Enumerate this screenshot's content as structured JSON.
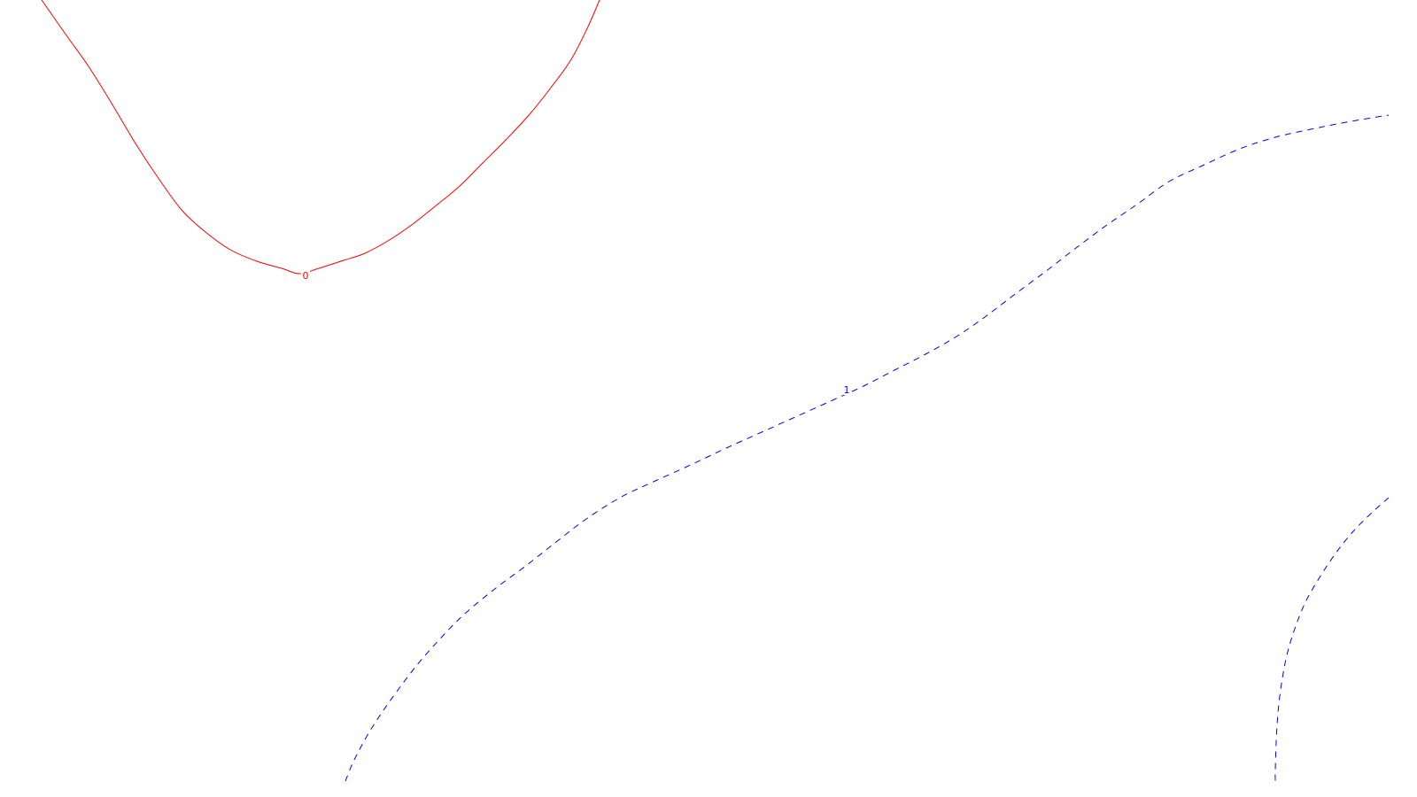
{
  "chart_data": {
    "type": "contour",
    "title": "",
    "xlabel": "",
    "ylabel": "",
    "grid": false,
    "legend": "none",
    "levels": [
      {
        "name": "level-0",
        "label": "0",
        "color": "#ff0000",
        "style": "solid",
        "segments": [
          {
            "id": "zero-contour",
            "points": [
              [
                47,
                0
              ],
              [
                75,
                40
              ],
              [
                100,
                75
              ],
              [
                125,
                115
              ],
              [
                153,
                162
              ],
              [
                178,
                200
              ],
              [
                205,
                237
              ],
              [
                232,
                262
              ],
              [
                260,
                282
              ],
              [
                290,
                295
              ],
              [
                318,
                303
              ],
              [
                338,
                309
              ],
              [
                360,
                303
              ],
              [
                388,
                294
              ],
              [
                412,
                286
              ],
              [
                438,
                272
              ],
              [
                462,
                256
              ],
              [
                490,
                234
              ],
              [
                518,
                211
              ],
              [
                545,
                184
              ],
              [
                572,
                157
              ],
              [
                598,
                129
              ],
              [
                622,
                99
              ],
              [
                645,
                67
              ],
              [
                664,
                30
              ],
              [
                677,
                0
              ]
            ],
            "label_at": [
              345,
              315
            ]
          }
        ]
      },
      {
        "name": "level-1",
        "label": "1",
        "color": "#0000ff",
        "style": "dashed",
        "segments": [
          {
            "id": "one-contour-main",
            "points": [
              [
                390,
                882
              ],
              [
                400,
                858
              ],
              [
                418,
                825
              ],
              [
                440,
                792
              ],
              [
                470,
                752
              ],
              [
                500,
                718
              ],
              [
                526,
                692
              ],
              [
                560,
                664
              ],
              [
                595,
                638
              ],
              [
                628,
                612
              ],
              [
                662,
                586
              ],
              [
                700,
                562
              ],
              [
                740,
                543
              ],
              [
                782,
                524
              ],
              [
                820,
                506
              ],
              [
                860,
                488
              ],
              [
                900,
                470
              ],
              [
                940,
                452
              ],
              [
                975,
                436
              ],
              [
                1010,
                418
              ],
              [
                1045,
                400
              ],
              [
                1080,
                380
              ],
              [
                1112,
                358
              ],
              [
                1145,
                333
              ],
              [
                1180,
                307
              ],
              [
                1215,
                280
              ],
              [
                1250,
                254
              ],
              [
                1285,
                230
              ],
              [
                1320,
                205
              ],
              [
                1360,
                186
              ],
              [
                1400,
                168
              ],
              [
                1440,
                155
              ],
              [
                1480,
                146
              ],
              [
                1520,
                138
              ],
              [
                1568,
                130
              ]
            ],
            "label_at": [
              956,
              444
            ]
          },
          {
            "id": "one-contour-corner",
            "points": [
              [
                1568,
                562
              ],
              [
                1550,
                578
              ],
              [
                1528,
                600
              ],
              [
                1508,
                625
              ],
              [
                1490,
                652
              ],
              [
                1474,
                680
              ],
              [
                1462,
                710
              ],
              [
                1453,
                740
              ],
              [
                1447,
                772
              ],
              [
                1443,
                805
              ],
              [
                1441,
                838
              ],
              [
                1440,
                870
              ],
              [
                1440,
                882
              ]
            ],
            "label_at": null
          }
        ]
      }
    ]
  }
}
